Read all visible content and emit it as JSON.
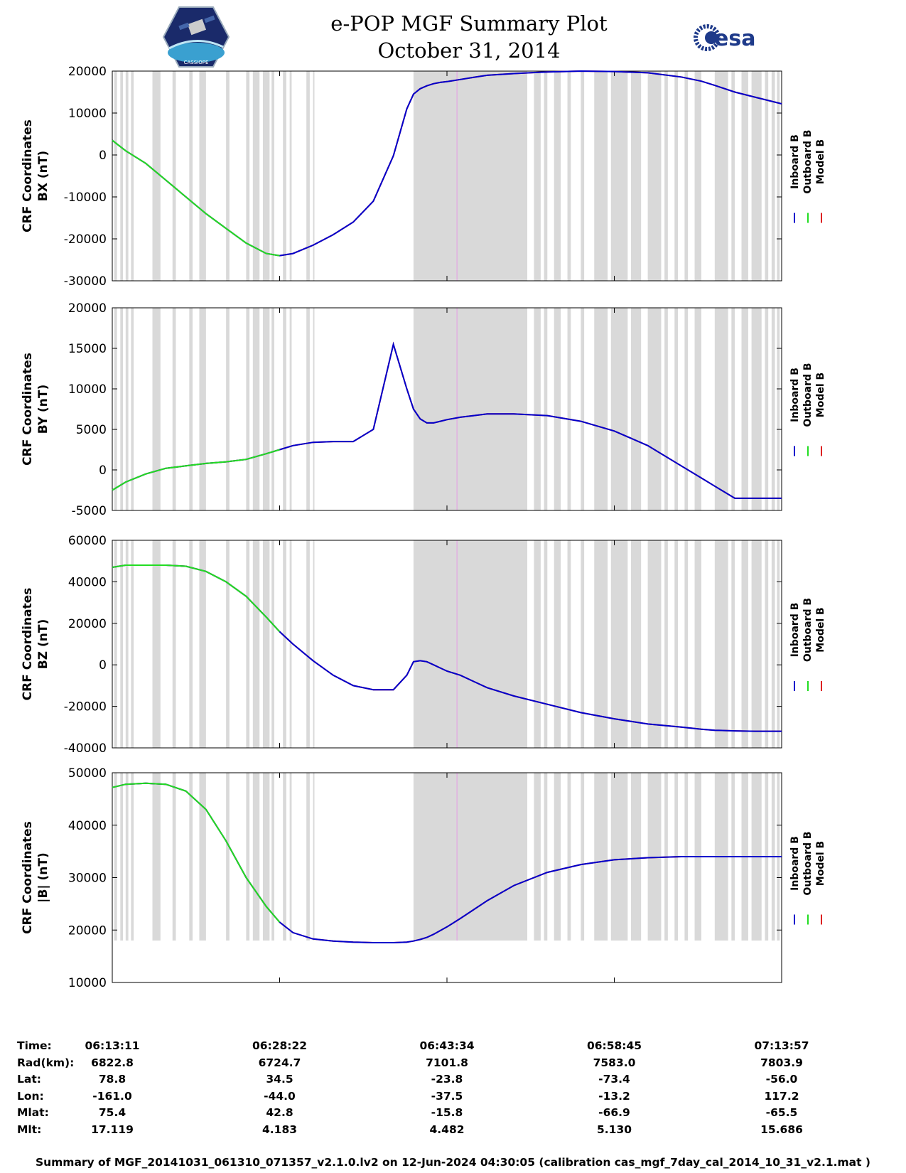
{
  "header": {
    "title": "e-POP MGF Summary Plot",
    "date": "October 31, 2014",
    "logo_left": "CASSIOPE",
    "logo_right": "esa"
  },
  "colors": {
    "inboard": "#0000cc",
    "outboard": "#22dd22",
    "model": "#dd2222",
    "gap_bars": "#d9d9d9",
    "marker": "#e0b0e0"
  },
  "chart_data": [
    {
      "type": "line",
      "ylabel_line1": "CRF Coordinates",
      "ylabel_line2": "BX (nT)",
      "ylim": [
        -30000,
        20000
      ],
      "yticks": [
        20000,
        10000,
        0,
        -10000,
        -20000,
        -30000
      ],
      "xlim": [
        0,
        1
      ]
    },
    {
      "type": "line",
      "ylabel_line1": "CRF Coordinates",
      "ylabel_line2": "BY (nT)",
      "ylim": [
        -5000,
        20000
      ],
      "yticks": [
        20000,
        15000,
        10000,
        5000,
        0,
        -5000
      ],
      "xlim": [
        0,
        1
      ]
    },
    {
      "type": "line",
      "ylabel_line1": "CRF Coordinates",
      "ylabel_line2": "BZ (nT)",
      "ylim": [
        -40000,
        60000
      ],
      "yticks": [
        60000,
        40000,
        20000,
        0,
        -20000,
        -40000
      ],
      "xlim": [
        0,
        1
      ]
    },
    {
      "type": "line",
      "ylabel_line1": "CRF Coordinates",
      "ylabel_line2": "|B| (nT)",
      "ylim": [
        10000,
        50000
      ],
      "yticks": [
        50000,
        40000,
        30000,
        20000,
        10000
      ],
      "xlim": [
        0,
        1
      ]
    }
  ],
  "series_data": {
    "x": [
      0,
      0.02,
      0.05,
      0.08,
      0.11,
      0.14,
      0.17,
      0.2,
      0.23,
      0.25,
      0.27,
      0.3,
      0.33,
      0.36,
      0.39,
      0.42,
      0.44,
      0.45,
      0.46,
      0.47,
      0.48,
      0.49,
      0.5,
      0.52,
      0.54,
      0.56,
      0.6,
      0.65,
      0.7,
      0.75,
      0.8,
      0.85,
      0.88,
      0.9,
      0.93,
      0.96,
      1.0
    ],
    "bx": [
      3500,
      1000,
      -2000,
      -6000,
      -10000,
      -14000,
      -17500,
      -21000,
      -23500,
      -24000,
      -23500,
      -21500,
      -19000,
      -16000,
      -11000,
      -200,
      11000,
      14500,
      15800,
      16500,
      17000,
      17300,
      17500,
      18000,
      18500,
      19000,
      19400,
      19800,
      20000,
      19900,
      19600,
      18600,
      17600,
      16600,
      15000,
      13800,
      12200
    ],
    "by": [
      -2500,
      -1500,
      -500,
      200,
      500,
      800,
      1000,
      1300,
      2000,
      2500,
      3000,
      3400,
      3500,
      3500,
      5000,
      15500,
      10000,
      7500,
      6300,
      5800,
      5800,
      6000,
      6200,
      6500,
      6700,
      6900,
      6900,
      6700,
      6000,
      4800,
      3000,
      500,
      -1000,
      -2000,
      -3500,
      -3500,
      -3500
    ],
    "bz": [
      47000,
      48000,
      48000,
      48000,
      47500,
      45000,
      40000,
      33000,
      23000,
      16000,
      10000,
      2000,
      -5000,
      -10000,
      -12000,
      -12000,
      -5000,
      1500,
      2000,
      1500,
      0,
      -1500,
      -3000,
      -5000,
      -8000,
      -11000,
      -15000,
      -19000,
      -23000,
      -26000,
      -28500,
      -30000,
      -31000,
      -31500,
      -31800,
      -32000,
      -32000
    ],
    "bmag": [
      47200,
      47800,
      48000,
      47800,
      46500,
      43000,
      37000,
      30000,
      24500,
      21500,
      19500,
      18300,
      17900,
      17700,
      17600,
      17600,
      17700,
      17900,
      18200,
      18600,
      19200,
      19900,
      20600,
      22200,
      23900,
      25600,
      28500,
      31000,
      32500,
      33400,
      33800,
      34000,
      34000,
      34000,
      34000,
      34000,
      34000
    ],
    "outboard_end": 0.25,
    "marker_x": 0.515,
    "gap_start": 0.45,
    "gaps_early": [
      [
        0.003,
        0.007
      ],
      [
        0.012,
        0.016
      ],
      [
        0.02,
        0.024
      ],
      [
        0.028,
        0.032
      ],
      [
        0.06,
        0.072
      ],
      [
        0.09,
        0.095
      ],
      [
        0.115,
        0.12
      ],
      [
        0.13,
        0.14
      ],
      [
        0.17,
        0.175
      ],
      [
        0.2,
        0.205
      ],
      [
        0.21,
        0.22
      ],
      [
        0.225,
        0.235
      ],
      [
        0.238,
        0.242
      ],
      [
        0.255,
        0.26
      ],
      [
        0.265,
        0.268
      ],
      [
        0.29,
        0.295
      ],
      [
        0.3,
        0.302
      ]
    ],
    "gaps_late": [
      [
        0.45,
        0.62
      ],
      [
        0.63,
        0.64
      ],
      [
        0.645,
        0.65
      ],
      [
        0.66,
        0.67
      ],
      [
        0.68,
        0.685
      ],
      [
        0.7,
        0.705
      ],
      [
        0.72,
        0.74
      ],
      [
        0.745,
        0.77
      ],
      [
        0.775,
        0.79
      ],
      [
        0.8,
        0.82
      ],
      [
        0.825,
        0.83
      ],
      [
        0.84,
        0.845
      ],
      [
        0.855,
        0.86
      ],
      [
        0.87,
        0.88
      ],
      [
        0.9,
        0.92
      ],
      [
        0.925,
        0.93
      ],
      [
        0.94,
        0.95
      ],
      [
        0.955,
        0.97
      ],
      [
        0.975,
        0.98
      ],
      [
        0.985,
        0.99
      ],
      [
        0.993,
        0.997
      ]
    ]
  },
  "legend": [
    "Inboard B",
    "Outboard B",
    "Model B"
  ],
  "ephemeris": {
    "labels": [
      "Time:",
      "Rad(km):",
      "Lat:",
      "Lon:",
      "Mlat:",
      "Mlt:"
    ],
    "columns": [
      [
        "06:13:11",
        "6822.8",
        "78.8",
        "-161.0",
        "75.4",
        "17.119"
      ],
      [
        "06:28:22",
        "6724.7",
        "34.5",
        "-44.0",
        "42.8",
        "4.183"
      ],
      [
        "06:43:34",
        "7101.8",
        "-23.8",
        "-37.5",
        "-15.8",
        "4.482"
      ],
      [
        "06:58:45",
        "7583.0",
        "-73.4",
        "-13.2",
        "-66.9",
        "5.130"
      ],
      [
        "07:13:57",
        "7803.9",
        "-56.0",
        "117.2",
        "-65.5",
        "15.686"
      ]
    ]
  },
  "footer": "Summary of MGF_20141031_061310_071357_v2.1.0.lv2 on 12-Jun-2024 04:30:05 (calibration cas_mgf_7day_cal_2014_10_31_v2.1.mat )"
}
